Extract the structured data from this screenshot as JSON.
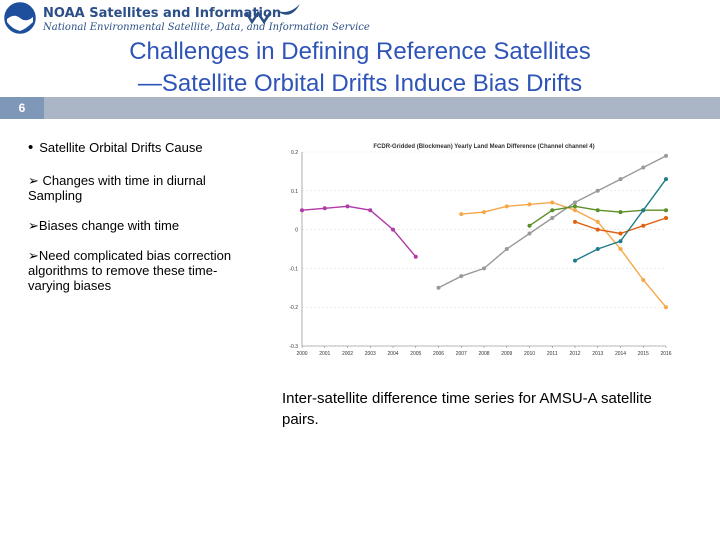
{
  "header": {
    "brand_title": "NOAA Satellites and Information",
    "brand_subtitle": "National Environmental Satellite, Data, and Information Service"
  },
  "slide": {
    "title_line1": "Challenges in Defining Reference Satellites",
    "title_line2": "—Satellite Orbital Drifts Induce Bias Drifts",
    "number": "6",
    "bullet_main": "Satellite Orbital Drifts Cause",
    "bullet_1": "Changes with time in diurnal Sampling",
    "bullet_2": "Biases change with time",
    "bullet_3": "Need complicated bias correction algorithms to remove these time-varying biases",
    "caption": "Inter-satellite difference time series for AMSU-A satellite pairs."
  },
  "colors": {
    "title": "#2e54b8",
    "bar": "#aab6c6",
    "slide_number_bg": "#7f97b8"
  },
  "chart_data": {
    "type": "line",
    "title": "FCDR-Gridded (Blockmean) Yearly Land Mean Difference (Channel channel 4)",
    "ylim": [
      -0.3,
      0.2
    ],
    "yticks": [
      0.2,
      0.1,
      0.0,
      -0.1,
      -0.2,
      -0.3
    ],
    "ytick_labels": [
      "0.2",
      "0.1",
      "0",
      "-0.1",
      "-0.2",
      "-0.3"
    ],
    "xlim": [
      2000,
      2016
    ],
    "x_ticks": [
      2000,
      2001,
      2002,
      2003,
      2004,
      2005,
      2006,
      2007,
      2008,
      2009,
      2010,
      2011,
      2012,
      2013,
      2014,
      2015,
      2016
    ],
    "x_tick_labels": [
      "2000",
      "2001",
      "2002",
      "2003",
      "2004",
      "2005",
      "2006",
      "2007",
      "2008",
      "2009",
      "2010",
      "2011",
      "2012",
      "2013",
      "2014",
      "2015",
      "2016"
    ],
    "series": [
      {
        "color": "#b03aa8",
        "x": [
          2000,
          2001,
          2002,
          2003,
          2004,
          2005
        ],
        "y": [
          0.05,
          0.055,
          0.06,
          0.05,
          0.0,
          -0.07
        ]
      },
      {
        "color": "#999999",
        "x": [
          2006,
          2007,
          2008,
          2009,
          2010,
          2011,
          2012,
          2013,
          2014,
          2015,
          2016
        ],
        "y": [
          -0.15,
          -0.12,
          -0.1,
          -0.05,
          -0.01,
          0.03,
          0.07,
          0.1,
          0.13,
          0.16,
          0.19
        ]
      },
      {
        "color": "#f5a84a",
        "x": [
          2007,
          2008,
          2009,
          2010,
          2011,
          2012,
          2013,
          2014,
          2015,
          2016
        ],
        "y": [
          0.04,
          0.045,
          0.06,
          0.065,
          0.07,
          0.05,
          0.02,
          -0.05,
          -0.13,
          -0.2
        ]
      },
      {
        "color": "#5b8f26",
        "x": [
          2010,
          2011,
          2012,
          2013,
          2014,
          2015,
          2016
        ],
        "y": [
          0.01,
          0.05,
          0.06,
          0.05,
          0.045,
          0.05,
          0.05
        ]
      },
      {
        "color": "#e06010",
        "x": [
          2012,
          2013,
          2014,
          2015,
          2016
        ],
        "y": [
          0.02,
          0.0,
          -0.01,
          0.01,
          0.03
        ]
      },
      {
        "color": "#1f7b8a",
        "x": [
          2012,
          2013,
          2014,
          2015,
          2016
        ],
        "y": [
          -0.08,
          -0.05,
          -0.03,
          0.05,
          0.13
        ]
      }
    ]
  }
}
